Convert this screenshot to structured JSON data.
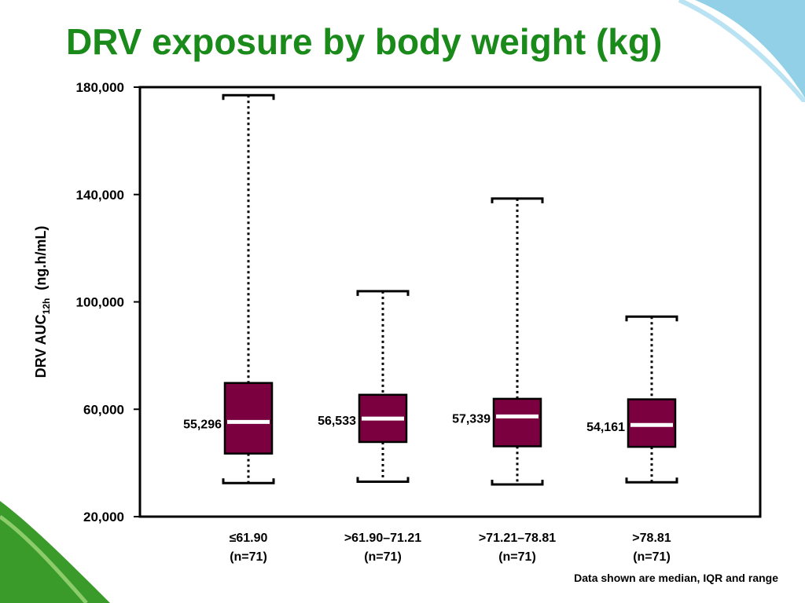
{
  "title": "DRV exposure by body weight (kg)",
  "footnote": "Data shown are median, IQR and range",
  "colors": {
    "title": "#1a8a1a",
    "box_fill": "#7a0040",
    "median_line": "#ffffff",
    "deco_blue": "#7ec8e3",
    "deco_green": "#3a9a2a"
  },
  "chart_data": {
    "type": "box",
    "title": "DRV exposure by body weight (kg)",
    "ylabel": {
      "main": "DRV AUC",
      "sub": "12h",
      "unit": "(ng.h/mL)"
    },
    "xlabel": "",
    "ylim": [
      20000,
      180000
    ],
    "yticks": [
      20000,
      60000,
      100000,
      140000,
      180000
    ],
    "ytick_labels": [
      "20,000",
      "60,000",
      "100,000",
      "140,000",
      "180,000"
    ],
    "grid": false,
    "categories": [
      {
        "label": "≤61.90",
        "n": "(n=71)"
      },
      {
        "label": ">61.90–71.21",
        "n": "(n=71)"
      },
      {
        "label": ">71.21–78.81",
        "n": "(n=71)"
      },
      {
        "label": ">78.81",
        "n": "(n=71)"
      }
    ],
    "series": [
      {
        "min": 32500,
        "q1": 43500,
        "median": 55296,
        "q3": 69800,
        "max": 177000,
        "median_label": "55,296"
      },
      {
        "min": 33000,
        "q1": 47800,
        "median": 56533,
        "q3": 65400,
        "max": 104000,
        "median_label": "56,533"
      },
      {
        "min": 32000,
        "q1": 46200,
        "median": 57339,
        "q3": 63900,
        "max": 138500,
        "median_label": "57,339"
      },
      {
        "min": 32800,
        "q1": 46000,
        "median": 54161,
        "q3": 63700,
        "max": 94500,
        "median_label": "54,161"
      }
    ]
  }
}
